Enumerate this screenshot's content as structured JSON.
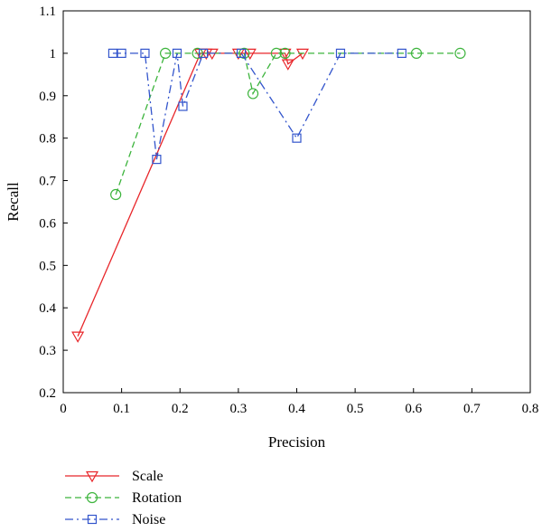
{
  "chart_data": {
    "type": "line",
    "title": "",
    "xlabel": "Precision",
    "ylabel": "Recall",
    "xlim": [
      0,
      0.8
    ],
    "ylim": [
      0.2,
      1.1
    ],
    "xticks": [
      0,
      0.1,
      0.2,
      0.3,
      0.4,
      0.5,
      0.6,
      0.7,
      0.8
    ],
    "yticks": [
      0.2,
      0.3,
      0.4,
      0.5,
      0.6,
      0.7,
      0.8,
      0.9,
      1,
      1.1
    ],
    "xtick_labels": [
      "0",
      "0.1",
      "0.2",
      "0.3",
      "0.4",
      "0.5",
      "0.6",
      "0.7",
      "0.8"
    ],
    "ytick_labels": [
      "0.2",
      "0.3",
      "0.4",
      "0.5",
      "0.6",
      "0.7",
      "0.8",
      "0.9",
      "1",
      "1.1"
    ],
    "grid": false,
    "legend_position": "bottom-left, below plot",
    "series": [
      {
        "name": "Scale",
        "color": "#e8262a",
        "line_style": "solid",
        "marker": "triangle-down",
        "x": [
          0.025,
          0.235,
          0.245,
          0.255,
          0.3,
          0.32,
          0.38,
          0.385,
          0.41
        ],
        "y": [
          0.333,
          1.0,
          1.0,
          1.0,
          1.0,
          1.0,
          1.0,
          0.975,
          1.0
        ]
      },
      {
        "name": "Rotation",
        "color": "#3cb43c",
        "line_style": "dashed",
        "marker": "circle",
        "x": [
          0.09,
          0.175,
          0.23,
          0.31,
          0.325,
          0.365,
          0.38,
          0.605,
          0.68
        ],
        "y": [
          0.667,
          1.0,
          1.0,
          1.0,
          0.905,
          1.0,
          1.0,
          1.0,
          1.0
        ]
      },
      {
        "name": "Noise",
        "color": "#3355cc",
        "line_style": "dash-dot",
        "marker": "square",
        "x": [
          0.085,
          0.1,
          0.14,
          0.16,
          0.195,
          0.205,
          0.24,
          0.305,
          0.4,
          0.475,
          0.58
        ],
        "y": [
          1.0,
          1.0,
          1.0,
          0.75,
          1.0,
          0.875,
          1.0,
          1.0,
          0.8,
          1.0,
          1.0
        ]
      }
    ]
  }
}
